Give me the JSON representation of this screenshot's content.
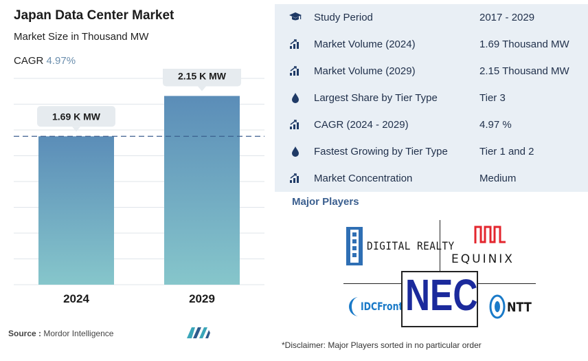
{
  "header": {
    "title": "Japan Data Center Market",
    "subtitle": "Market Size in Thousand MW",
    "cagr_label": "CAGR",
    "cagr_value": "4.97%"
  },
  "chart_data": {
    "type": "bar",
    "categories": [
      "2024",
      "2029"
    ],
    "values": [
      1.69,
      2.15
    ],
    "data_labels": [
      "1.69 K MW",
      "2.15 K MW"
    ],
    "ylim": [
      0,
      2.35
    ],
    "grid": true,
    "reference_line": 1.69
  },
  "source": {
    "label": "Source :",
    "text": "Mordor Intelligence"
  },
  "stats": [
    {
      "icon": "graduation-cap-icon",
      "label": "Study Period",
      "value": "2017 - 2029"
    },
    {
      "icon": "bar-chart-icon",
      "label": "Market Volume (2024)",
      "value": "1.69 Thousand MW"
    },
    {
      "icon": "bar-chart-icon",
      "label": "Market Volume (2029)",
      "value": "2.15 Thousand MW"
    },
    {
      "icon": "drop-icon",
      "label": "Largest Share by Tier Type",
      "value": "Tier 3"
    },
    {
      "icon": "bar-chart-icon",
      "label": "CAGR (2024 - 2029)",
      "value": "4.97 %"
    },
    {
      "icon": "drop-icon",
      "label": "Fastest Growing by Tier Type",
      "value": "Tier 1 and 2"
    },
    {
      "icon": "bar-chart-icon",
      "label": "Market Concentration",
      "value": "Medium"
    }
  ],
  "major_players": {
    "heading": "Major Players",
    "logos": {
      "digital_realty": "DIGITAL REALTY",
      "equinix": "EQUINIX",
      "idcfrontier": "IDCFrontier",
      "nec": "NEC",
      "ntt": "NTT"
    }
  },
  "disclaimer": "*Disclaimer: Major Players sorted in no particular order",
  "colors": {
    "bar_top": "#5b8db8",
    "bar_bottom": "#86c6cb",
    "stats_bg": "#e9eff5",
    "accent": "#3b5f8f",
    "nec_blue": "#1b2a9c",
    "equinix_red": "#e3262e"
  }
}
